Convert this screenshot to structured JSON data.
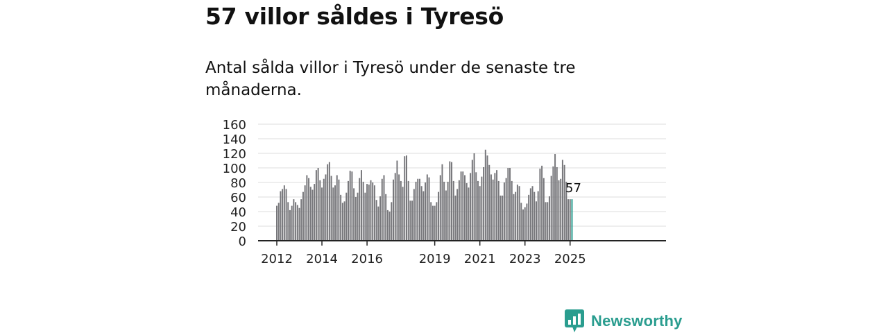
{
  "title": "57 villor såldes i Tyresö",
  "subtitle": "Antal sålda villor i Tyresö under de senaste tre månaderna.",
  "brand": {
    "name": "Newsworthy",
    "color": "#2a9d8f",
    "icon": "bar-chart-speech-bubble-icon"
  },
  "chart_data": {
    "type": "bar",
    "title": "",
    "xlabel": "",
    "ylabel": "",
    "ylim": [
      0,
      160
    ],
    "yticks": [
      0,
      20,
      40,
      60,
      80,
      100,
      120,
      140,
      160
    ],
    "xtick_labels": [
      "2012",
      "2014",
      "2016",
      "2019",
      "2021",
      "2023",
      "2025"
    ],
    "grid": true,
    "bar_color": "#77777b",
    "highlight_color": "#2a9d8f",
    "highlight_label": "57",
    "x_start": "2012-01",
    "x_end": "2025-03",
    "values": [
      48,
      52,
      68,
      71,
      76,
      71,
      53,
      42,
      48,
      57,
      53,
      49,
      45,
      57,
      67,
      76,
      90,
      86,
      74,
      70,
      78,
      97,
      100,
      83,
      73,
      85,
      91,
      105,
      108,
      89,
      73,
      76,
      90,
      84,
      63,
      52,
      54,
      66,
      82,
      96,
      95,
      72,
      60,
      66,
      86,
      97,
      81,
      66,
      78,
      77,
      83,
      80,
      76,
      56,
      47,
      61,
      85,
      90,
      64,
      42,
      40,
      53,
      84,
      93,
      110,
      91,
      82,
      74,
      116,
      117,
      82,
      55,
      55,
      71,
      81,
      85,
      85,
      75,
      68,
      80,
      91,
      87,
      53,
      48,
      48,
      53,
      67,
      90,
      105,
      81,
      69,
      81,
      109,
      108,
      82,
      62,
      71,
      83,
      95,
      95,
      90,
      79,
      73,
      93,
      111,
      120,
      94,
      82,
      75,
      88,
      101,
      125,
      117,
      104,
      91,
      84,
      93,
      97,
      82,
      62,
      62,
      80,
      86,
      100,
      100,
      82,
      64,
      67,
      77,
      75,
      52,
      43,
      46,
      51,
      63,
      72,
      75,
      67,
      54,
      68,
      99,
      103,
      86,
      53,
      53,
      61,
      89,
      102,
      119,
      101,
      83,
      85,
      111,
      104,
      81,
      57,
      57,
      57
    ]
  }
}
